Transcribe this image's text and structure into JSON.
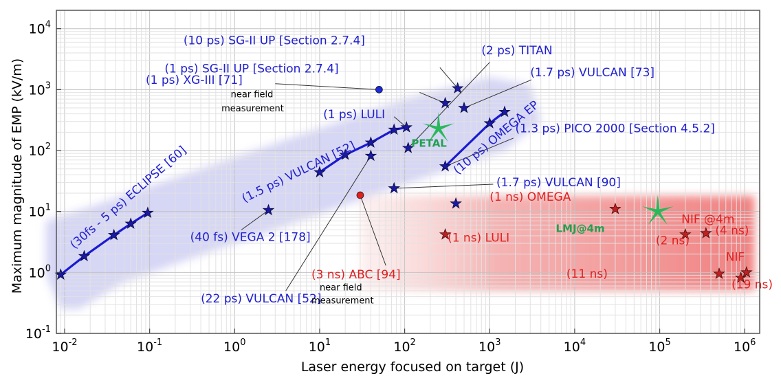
{
  "chart_data": {
    "type": "scatter",
    "xlabel": "Laser energy focused on target (J)",
    "ylabel": "Maximum magnitude of EMP (kV/m)",
    "xscale": "log",
    "yscale": "log",
    "xlim": [
      0.008,
      1500000
    ],
    "ylim": [
      0.1,
      20000
    ],
    "grid": true,
    "x_ticks": [
      {
        "value": 0.01,
        "base": "10",
        "exp": "-2"
      },
      {
        "value": 0.1,
        "base": "10",
        "exp": "-1"
      },
      {
        "value": 1,
        "base": "10",
        "exp": "0"
      },
      {
        "value": 10,
        "base": "10",
        "exp": "1"
      },
      {
        "value": 100,
        "base": "10",
        "exp": "2"
      },
      {
        "value": 1000,
        "base": "10",
        "exp": "3"
      },
      {
        "value": 10000,
        "base": "10",
        "exp": "4"
      },
      {
        "value": 100000,
        "base": "10",
        "exp": "5"
      },
      {
        "value": 1000000,
        "base": "10",
        "exp": "6"
      }
    ],
    "y_ticks": [
      {
        "value": 0.1,
        "base": "10",
        "exp": "-1"
      },
      {
        "value": 1,
        "base": "10",
        "exp": "0"
      },
      {
        "value": 10,
        "base": "10",
        "exp": "1"
      },
      {
        "value": 100,
        "base": "10",
        "exp": "2"
      },
      {
        "value": 1000,
        "base": "10",
        "exp": "3"
      },
      {
        "value": 10000,
        "base": "10",
        "exp": "4"
      }
    ],
    "regions": [
      {
        "color": "#c8c8f2",
        "polygon": [
          [
            0.009,
            0.25
          ],
          [
            0.006,
            0.9
          ],
          [
            0.006,
            7
          ],
          [
            0.02,
            12
          ],
          [
            100,
            700
          ],
          [
            1000,
            1600
          ],
          [
            3000,
            1200
          ],
          [
            4000,
            300
          ],
          [
            1500,
            100
          ],
          [
            500,
            60
          ],
          [
            0.05,
            0.7
          ],
          [
            0.015,
            0.25
          ]
        ]
      },
      {
        "color": "#f28a8a",
        "polygon": [
          [
            30,
            0.5
          ],
          [
            30,
            18
          ],
          [
            1300000,
            18
          ],
          [
            1300000,
            0.5
          ]
        ]
      }
    ],
    "series": [
      {
        "color": "#1a1ad0",
        "points": [
          [
            0.009,
            0.92
          ],
          [
            0.017,
            1.85
          ],
          [
            0.038,
            4.1
          ],
          [
            0.06,
            6.3
          ],
          [
            0.095,
            9.5
          ]
        ]
      },
      {
        "color": "#1a1ad0",
        "points": [
          [
            10,
            44
          ],
          [
            20,
            85
          ],
          [
            40,
            135
          ],
          [
            75,
            220
          ],
          [
            105,
            240
          ]
        ]
      },
      {
        "color": "#1a1ad0",
        "points": [
          [
            300,
            55
          ],
          [
            1000,
            280
          ],
          [
            1500,
            430
          ]
        ]
      }
    ],
    "stars": [
      {
        "x": 0.009,
        "y": 0.92
      },
      {
        "x": 0.017,
        "y": 1.85
      },
      {
        "x": 0.038,
        "y": 4.1
      },
      {
        "x": 0.06,
        "y": 6.3
      },
      {
        "x": 0.095,
        "y": 9.5
      },
      {
        "x": 2.5,
        "y": 10.5
      },
      {
        "x": 10,
        "y": 44
      },
      {
        "x": 20,
        "y": 85
      },
      {
        "x": 40,
        "y": 135
      },
      {
        "x": 40,
        "y": 82
      },
      {
        "x": 75,
        "y": 220
      },
      {
        "x": 105,
        "y": 240
      },
      {
        "x": 110,
        "y": 110
      },
      {
        "x": 75,
        "y": 24
      },
      {
        "x": 300,
        "y": 600
      },
      {
        "x": 300,
        "y": 55
      },
      {
        "x": 420,
        "y": 1050
      },
      {
        "x": 500,
        "y": 500
      },
      {
        "x": 1000,
        "y": 280
      },
      {
        "x": 1500,
        "y": 430
      },
      {
        "x": 400,
        "y": 13.5
      }
    ],
    "red_stars": [
      {
        "x": 300,
        "y": 4.2
      },
      {
        "x": 30000,
        "y": 11
      },
      {
        "x": 200000,
        "y": 4.2
      },
      {
        "x": 350000,
        "y": 4.4
      },
      {
        "x": 500000,
        "y": 0.95
      },
      {
        "x": 900000,
        "y": 0.82
      },
      {
        "x": 1050000,
        "y": 1.0
      }
    ],
    "dots": [
      {
        "x": 50,
        "y": 1000,
        "color": "#1a2ad8"
      },
      {
        "x": 30,
        "y": 18.5,
        "color": "#e02020"
      }
    ],
    "green_stars": [
      {
        "x": 250,
        "y": 230
      },
      {
        "x": 95000,
        "y": 10
      }
    ],
    "annotations": [
      {
        "text": "(10 ps) SG-II UP [Section 2.7.4]",
        "color": "#2020d0",
        "lx": 0.25,
        "ly": 5500,
        "anchor": "start",
        "pointer": [
          [
            260,
            2300
          ],
          [
            420,
            1050
          ]
        ]
      },
      {
        "text": "(2 ps) TITAN",
        "color": "#2020d0",
        "lx": 800,
        "ly": 3800,
        "anchor": "start",
        "pointer": [
          [
            1000,
            2800
          ],
          [
            110,
            110
          ]
        ]
      },
      {
        "text": "(1 ps) SG-II UP [Section 2.7.4]",
        "color": "#2020d0",
        "lx": 0.15,
        "ly": 1900,
        "anchor": "start",
        "pointer": [
          [
            150,
            900
          ],
          [
            300,
            600
          ]
        ]
      },
      {
        "text": "(1.7 ps) VULCAN [73]",
        "color": "#2020d0",
        "lx": 3000,
        "ly": 1650,
        "anchor": "start",
        "pointer": [
          [
            3100,
            1450
          ],
          [
            500,
            500
          ]
        ]
      },
      {
        "text": "(1 ps) XG-III [71]",
        "color": "#2020d0",
        "lx": 0.09,
        "ly": 1250,
        "anchor": "start",
        "pointer": [
          [
            3,
            1250
          ],
          [
            50,
            1000
          ]
        ]
      },
      {
        "text": "(1 ps) LULI",
        "color": "#2020d0",
        "lx": 11,
        "ly": 340,
        "anchor": "start",
        "pointer": [
          [
            75,
            360
          ],
          [
            105,
            240
          ]
        ]
      },
      {
        "text": "(1.3 ps) PICO 2000 [Section 4.5.2]",
        "color": "#2020d0",
        "lx": 2000,
        "ly": 200,
        "anchor": "start",
        "pointer": [
          [
            1900,
            160
          ],
          [
            300,
            55
          ]
        ]
      },
      {
        "text": "(1.7 ps) VULCAN [90]",
        "color": "#2020d0",
        "lx": 1200,
        "ly": 26,
        "anchor": "start",
        "pointer": [
          [
            1100,
            28
          ],
          [
            75,
            24
          ]
        ]
      },
      {
        "text": "(40 fs) VEGA 2 [178]",
        "color": "#2020d0",
        "lx": 0.3,
        "ly": 3.3,
        "anchor": "start",
        "pointer": [
          [
            1.2,
            5
          ],
          [
            2.5,
            10.5
          ]
        ]
      },
      {
        "text": "(22 ps) VULCAN [52]",
        "color": "#2020d0",
        "lx": 0.4,
        "ly": 0.32,
        "anchor": "start",
        "pointer": [
          [
            4,
            0.5
          ],
          [
            40,
            82
          ]
        ]
      },
      {
        "text": "(1 ns) OMEGA",
        "color": "#e02020",
        "lx": 1000,
        "ly": 15,
        "anchor": "start",
        "pointer": null
      },
      {
        "text": "(1 ns) LULI",
        "color": "#e02020",
        "lx": 320,
        "ly": 3.2,
        "anchor": "start",
        "pointer": null
      },
      {
        "text": "(3 ns) ABC [94]",
        "color": "#e02020",
        "lx": 8,
        "ly": 0.8,
        "anchor": "start",
        "pointer": [
          [
            60,
            1.3
          ],
          [
            30,
            18.5
          ]
        ]
      },
      {
        "text": "NIF @4m",
        "color": "#e02020",
        "lx": 180000,
        "ly": 6.5,
        "anchor": "start",
        "pointer": null
      },
      {
        "text": "(4 ns)",
        "color": "#e02020",
        "lx": 450000,
        "ly": 4.2,
        "anchor": "start",
        "pointer": null
      },
      {
        "text": "(2 ns)",
        "color": "#e02020",
        "lx": 90000,
        "ly": 2.9,
        "anchor": "start",
        "pointer": null
      },
      {
        "text": "NIF",
        "color": "#e02020",
        "lx": 600000,
        "ly": 1.55,
        "anchor": "start",
        "pointer": null
      },
      {
        "text": "(11 ns)",
        "color": "#e02020",
        "lx": 8000,
        "ly": 0.82,
        "anchor": "start",
        "pointer": null
      },
      {
        "text": "(19 ns)",
        "color": "#e02020",
        "lx": 700000,
        "ly": 0.55,
        "anchor": "start",
        "pointer": null
      }
    ],
    "rotated_labels": [
      {
        "text": "(30fs - 5 ps) ECLIPSE [60]",
        "color": "#2020d0",
        "lx": 0.013,
        "ly": 2.4,
        "angle": -41
      },
      {
        "text": "(1.5 ps) VULCAN [52]",
        "color": "#2020d0",
        "lx": 1.3,
        "ly": 14,
        "angle": -26
      },
      {
        "text": "(10 ps) OMEGA EP",
        "color": "#2020d0",
        "lx": 420,
        "ly": 40,
        "angle": -40
      }
    ],
    "small_labels": [
      {
        "text": "near field",
        "lx": 0.9,
        "ly": 750
      },
      {
        "text": "measurement",
        "lx": 0.7,
        "ly": 440
      },
      {
        "text": "near field",
        "lx": 10,
        "ly": 0.51
      },
      {
        "text": "measurement",
        "lx": 8,
        "ly": 0.31
      }
    ],
    "green_labels": [
      {
        "text": "PETAL",
        "lx": 120,
        "ly": 115
      },
      {
        "text": "LMJ@4m",
        "lx": 6000,
        "ly": 4.6
      }
    ]
  }
}
